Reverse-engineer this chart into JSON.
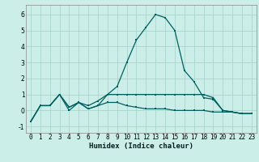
{
  "xlabel": "Humidex (Indice chaleur)",
  "x": [
    0,
    1,
    2,
    3,
    4,
    5,
    6,
    7,
    8,
    9,
    10,
    11,
    12,
    13,
    14,
    15,
    16,
    17,
    18,
    19,
    20,
    21,
    22,
    23
  ],
  "line1": [
    -0.7,
    0.3,
    0.3,
    1.0,
    0.2,
    0.5,
    0.1,
    0.3,
    1.0,
    1.5,
    3.0,
    4.4,
    5.2,
    6.0,
    5.8,
    5.0,
    2.5,
    1.8,
    0.8,
    0.7,
    0.0,
    -0.1,
    -0.2,
    -0.2
  ],
  "line2": [
    -0.7,
    0.3,
    0.3,
    1.0,
    0.2,
    0.5,
    0.3,
    0.6,
    1.0,
    1.0,
    1.0,
    1.0,
    1.0,
    1.0,
    1.0,
    1.0,
    1.0,
    1.0,
    1.0,
    0.8,
    0.0,
    -0.1,
    -0.2,
    -0.2
  ],
  "line3": [
    -0.7,
    0.3,
    0.3,
    1.0,
    0.0,
    0.5,
    0.1,
    0.3,
    0.5,
    0.5,
    0.3,
    0.2,
    0.1,
    0.1,
    0.1,
    0.0,
    0.0,
    0.0,
    0.0,
    -0.1,
    -0.1,
    -0.1,
    -0.2,
    -0.2
  ],
  "line_color": "#006060",
  "bg_color": "#cceee8",
  "grid_color": "#aad4cc",
  "xlim": [
    -0.5,
    23.5
  ],
  "ylim": [
    -1.4,
    6.6
  ],
  "yticks": [
    -1,
    0,
    1,
    2,
    3,
    4,
    5,
    6
  ],
  "xticks": [
    0,
    1,
    2,
    3,
    4,
    5,
    6,
    7,
    8,
    9,
    10,
    11,
    12,
    13,
    14,
    15,
    16,
    17,
    18,
    19,
    20,
    21,
    22,
    23
  ],
  "tick_fontsize": 5.5,
  "xlabel_fontsize": 6.5,
  "marker_size": 2.0,
  "linewidth": 0.9
}
